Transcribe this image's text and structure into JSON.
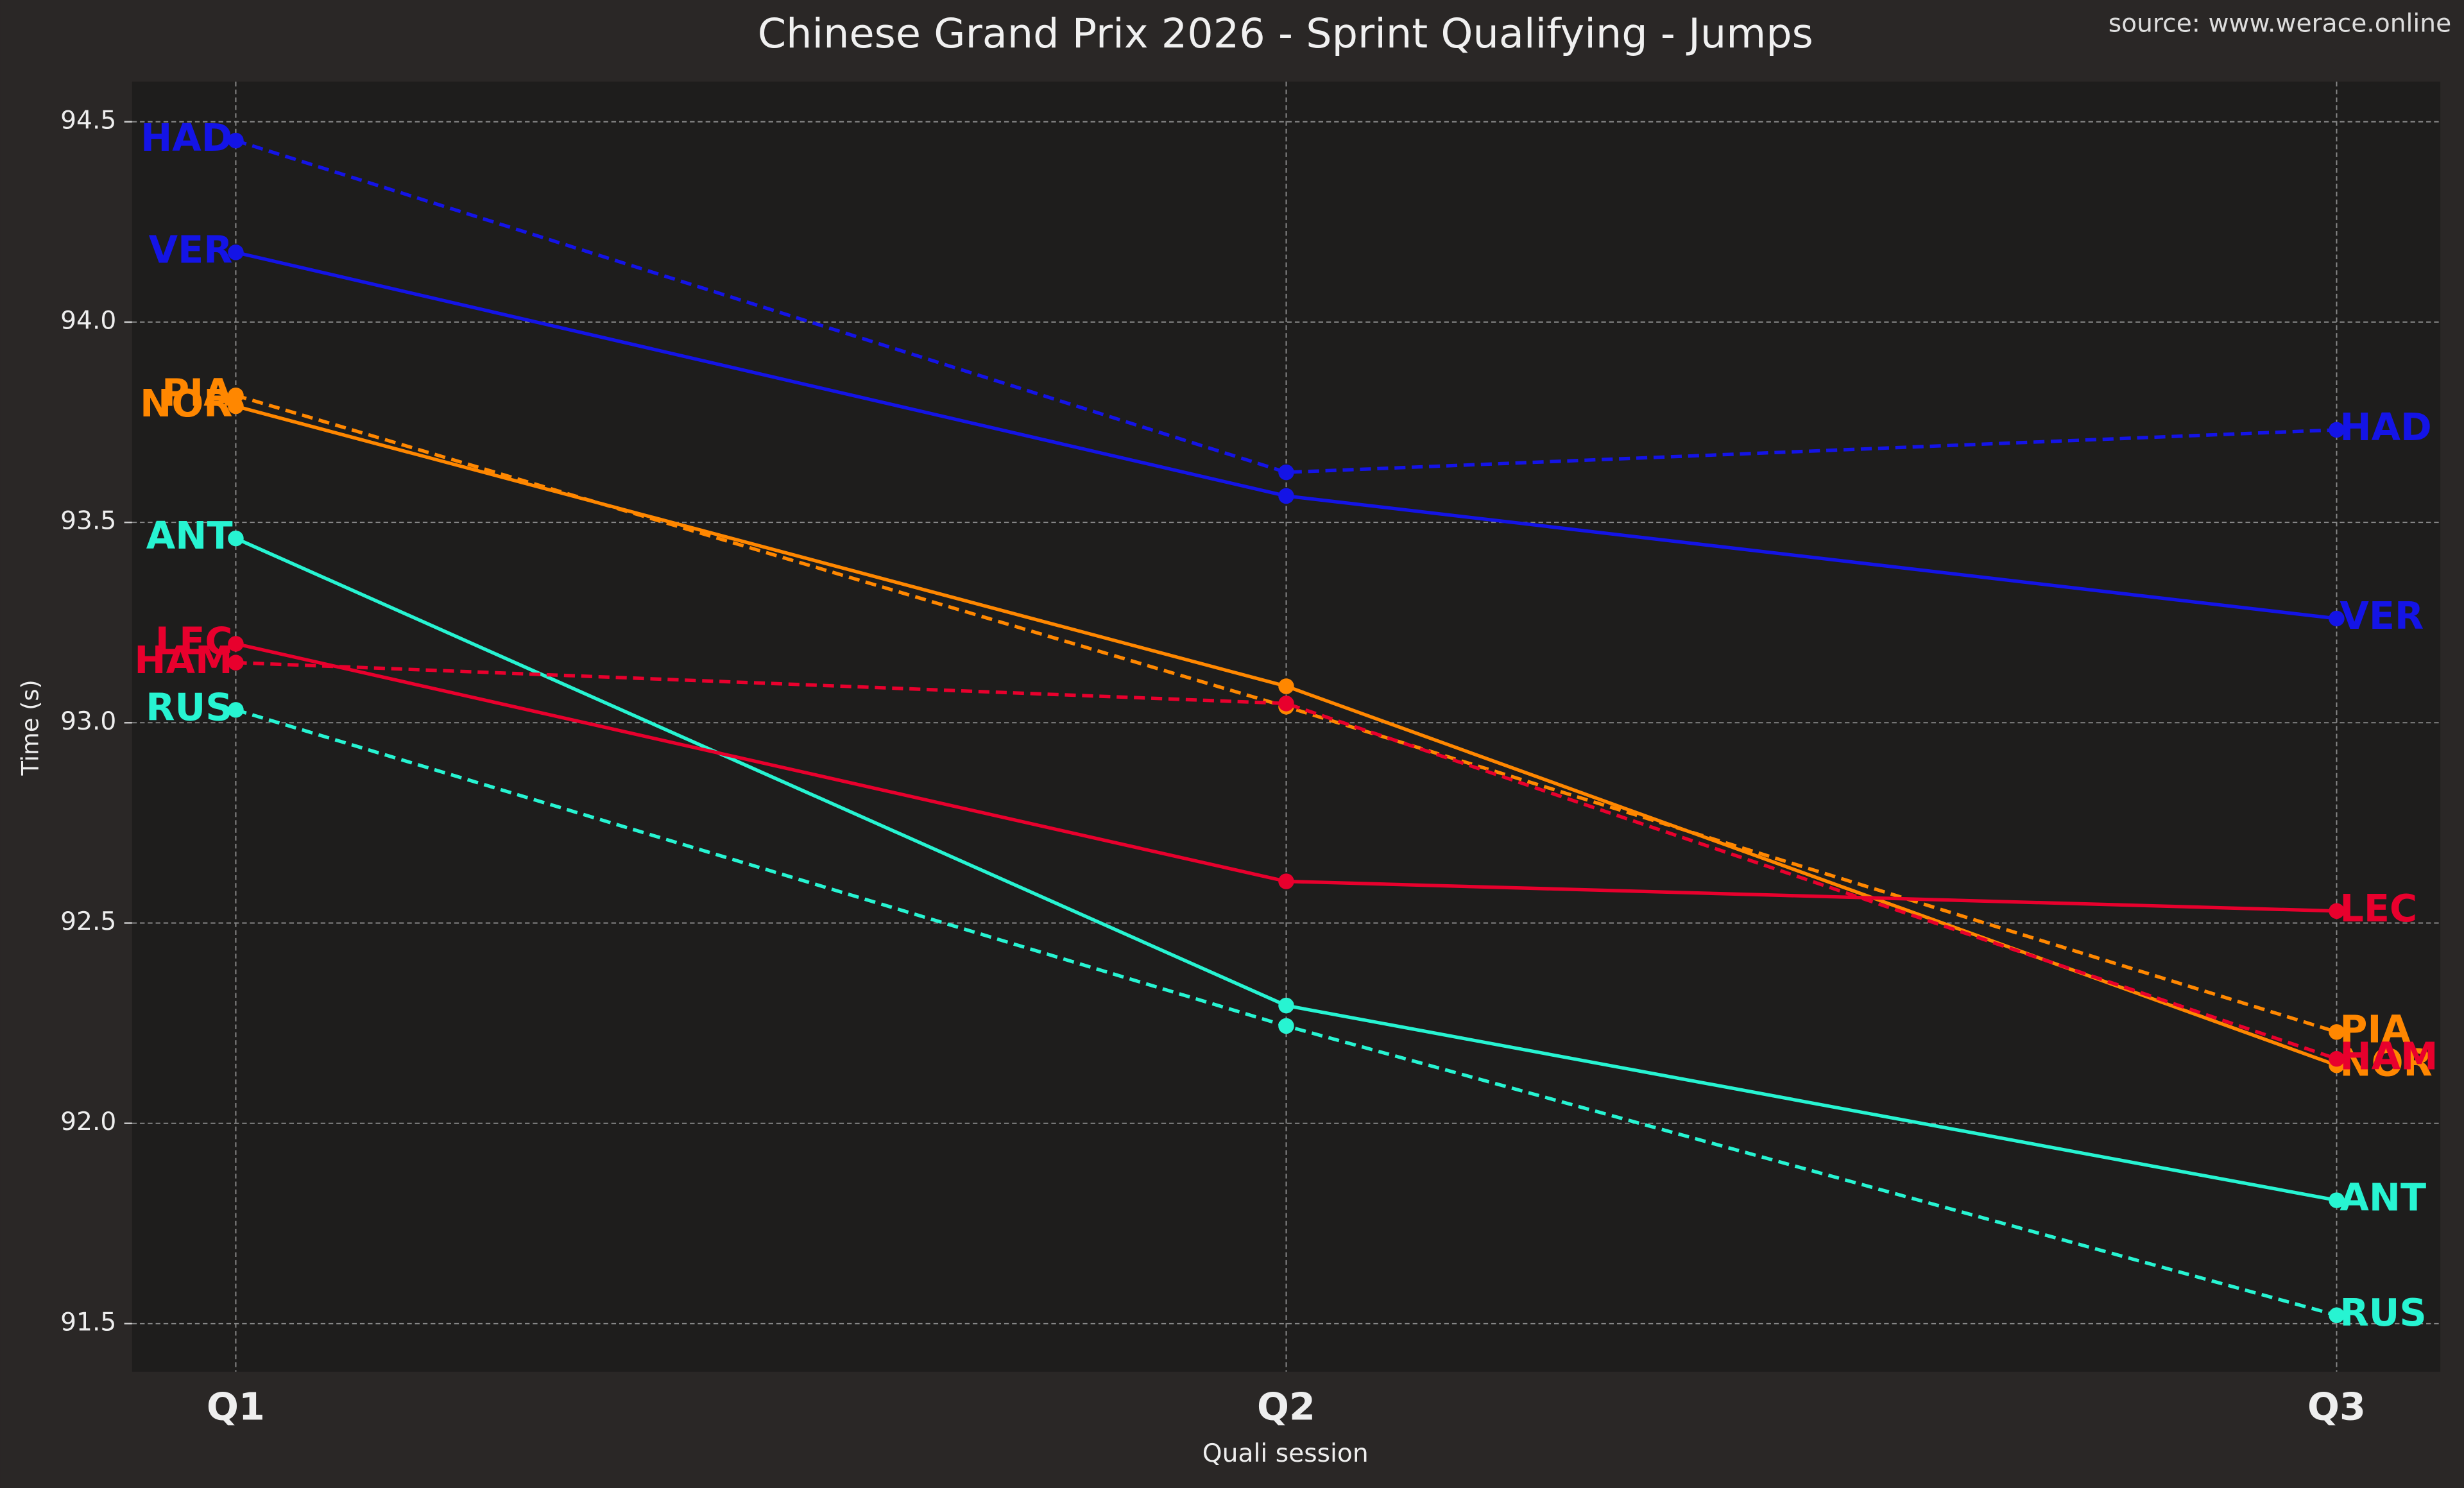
{
  "chart_data": {
    "type": "line",
    "title": "Chinese Grand Prix 2026 - Sprint Qualifying - Jumps",
    "source": "source: www.werace.online",
    "x_label": "Quali session",
    "y_label": "Time (s)",
    "categories": [
      "Q1",
      "Q2",
      "Q3"
    ],
    "ylim": [
      91.38,
      94.6
    ],
    "yticks": [
      {
        "value": 91.5,
        "label": "91.5"
      },
      {
        "value": 92.0,
        "label": "92.0"
      },
      {
        "value": 92.5,
        "label": "92.5"
      },
      {
        "value": 93.0,
        "label": "93.0"
      },
      {
        "value": 93.5,
        "label": "93.5"
      },
      {
        "value": 94.0,
        "label": "94.0"
      },
      {
        "value": 94.5,
        "label": "94.5"
      }
    ],
    "grid": true,
    "series": [
      {
        "name": "HAD",
        "color": "#1414e6",
        "linestyle": "dashed",
        "values": [
          94.453,
          93.625,
          93.731
        ]
      },
      {
        "name": "VER",
        "color": "#1414e6",
        "linestyle": "solid",
        "values": [
          94.174,
          93.566,
          93.26
        ]
      },
      {
        "name": "PIA",
        "color": "#ff8700",
        "linestyle": "dashed",
        "values": [
          93.817,
          93.04,
          92.228
        ]
      },
      {
        "name": "NOR",
        "color": "#ff8700",
        "linestyle": "solid",
        "values": [
          93.79,
          93.091,
          92.145
        ]
      },
      {
        "name": "ANT",
        "color": "#27f4d2",
        "linestyle": "solid",
        "values": [
          93.46,
          92.294,
          91.808
        ]
      },
      {
        "name": "LEC",
        "color": "#e8002d",
        "linestyle": "solid",
        "values": [
          93.197,
          92.604,
          92.53
        ]
      },
      {
        "name": "HAM",
        "color": "#e8002d",
        "linestyle": "dashed",
        "values": [
          93.15,
          93.048,
          92.161
        ]
      },
      {
        "name": "RUS",
        "color": "#27f4d2",
        "linestyle": "dashed",
        "values": [
          93.032,
          92.243,
          91.521
        ]
      }
    ]
  }
}
